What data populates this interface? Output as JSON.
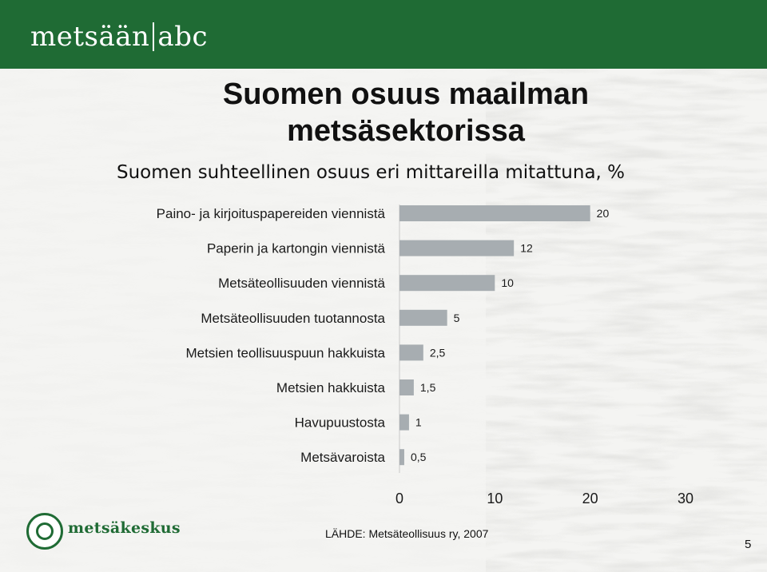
{
  "header": {
    "brand_left": "metsään",
    "brand_right": "abc",
    "color": "#1f6b34"
  },
  "slide": {
    "title_line1": "Suomen osuus maailman",
    "title_line2": "metsäsektorissa",
    "subtitle": "Suomen suhteellinen osuus eri mittareilla mitattuna, %",
    "source": "LÄHDE: Metsäteollisuus ry, 2007",
    "page_number": "5"
  },
  "footer": {
    "logo_text": "metsäkeskus",
    "logo_icon": "metsakeskus-ring-icon"
  },
  "chart_data": {
    "type": "bar",
    "orientation": "horizontal",
    "categories": [
      "Paino- ja kirjoituspapereiden viennistä",
      "Paperin ja kartongin viennistä",
      "Metsäteollisuuden viennistä",
      "Metsäteollisuuden tuotannosta",
      "Metsien teollisuuspuun hakkuista",
      "Metsien hakkuista",
      "Havupuustosta",
      "Metsävaroista"
    ],
    "values": [
      20,
      12,
      10,
      5,
      2.5,
      1.5,
      1,
      0.5
    ],
    "data_labels": [
      "20",
      "12",
      "10",
      "5",
      "2,5",
      "1,5",
      "1",
      "0,5"
    ],
    "xlim": [
      0,
      30
    ],
    "xticks": [
      "0",
      "10",
      "20",
      "30"
    ],
    "xlabel": "",
    "ylabel": "",
    "grid": false,
    "bar_color": "#a7adb1"
  }
}
